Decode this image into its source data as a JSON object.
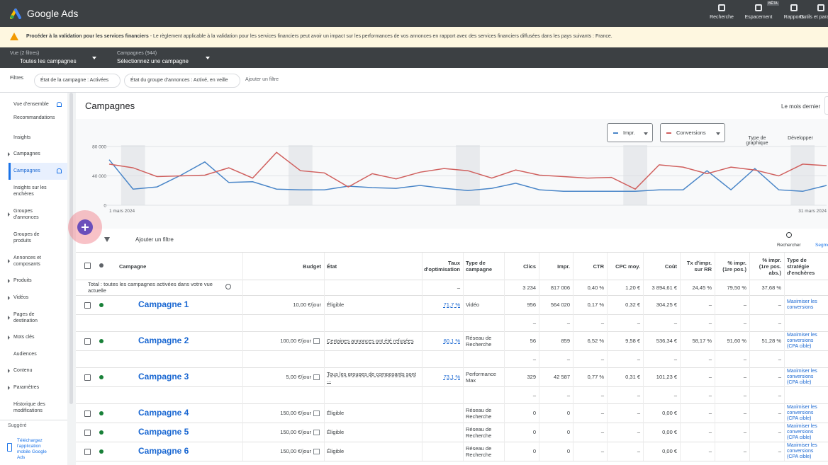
{
  "header": {
    "product": "Google Ads",
    "tools": [
      "Recherche",
      "Espacement",
      "Rapports",
      "Outils et paramètres"
    ],
    "badge": "BÊTA"
  },
  "alert": {
    "title": "Procéder à la validation pour les services financiers",
    "text": " - Le règlement applicable à la validation pour les services financiers peut avoir un impact sur les performances de vos annonces en rapport avec des services financiers diffusées dans les pays suivants : France."
  },
  "nav": {
    "view_label": "Vue (2 filtres)",
    "view_value": "Toutes les campagnes",
    "campaign_label": "Campagnes (944)",
    "campaign_value": "Sélectionnez une campagne"
  },
  "filters": {
    "label": "Filtres",
    "chips": [
      "État de la campagne : Activées",
      "État du groupe d'annonces : Activé, en veille"
    ],
    "add": "Ajouter un filtre"
  },
  "sidebar": {
    "items": [
      "Vue d'ensemble",
      "Recommandations",
      "Insights",
      "Campagnes",
      "Campagnes",
      "Insights sur les enchères",
      "Groupes d'annonces",
      "Groupes de produits",
      "Annonces et composants",
      "Produits",
      "Vidéos",
      "Pages de destination",
      "Mots clés",
      "Audiences",
      "Contenu",
      "Paramètres",
      "Historique des modifications"
    ],
    "suggested": "Suggéré",
    "app": "Téléchargez l'application mobile Google Ads"
  },
  "main": {
    "title": "Campagnes",
    "date_range": "Le mois dernier"
  },
  "chart_data": {
    "type": "line",
    "metrics_buttons": [
      "Type de graphique",
      "Développer"
    ],
    "x": [
      "1 mars 2024",
      null,
      null,
      null,
      null,
      null,
      null,
      null,
      null,
      null,
      null,
      null,
      null,
      null,
      null,
      null,
      null,
      null,
      null,
      null,
      null,
      null,
      null,
      null,
      null,
      null,
      null,
      null,
      null,
      null,
      "31 mars 2024"
    ],
    "ylim": [
      0,
      80000
    ],
    "yticks": [
      0,
      {
        "value": 40000,
        "label": "40 000"
      },
      {
        "value": 80000,
        "label": "80 000"
      }
    ],
    "series": [
      {
        "name": "Impr.",
        "color": "#4a86c8",
        "values": [
          62000,
          22000,
          25000,
          41000,
          59000,
          31000,
          32000,
          22000,
          21000,
          21000,
          26000,
          24000,
          23000,
          27000,
          23000,
          20000,
          23000,
          30000,
          21000,
          19000,
          19000,
          19000,
          19000,
          21000,
          21000,
          47000,
          21000,
          50000,
          21000,
          19000,
          27000
        ]
      },
      {
        "name": "Conversions",
        "color": "#d0605e",
        "values": [
          56000,
          51000,
          39000,
          40000,
          41000,
          51000,
          37000,
          72000,
          47000,
          44000,
          25000,
          43000,
          36000,
          45000,
          50000,
          47000,
          37000,
          48000,
          41000,
          39000,
          37000,
          38000,
          22000,
          55000,
          52000,
          43000,
          52000,
          48000,
          40000,
          56000,
          54000
        ]
      }
    ]
  },
  "table": {
    "toolbar_add": "Ajouter un filtre",
    "search": "Rechercher",
    "segment": "Segmenter",
    "placeholder": "–",
    "headers": [
      "Campagne",
      "Budget",
      "État",
      "Taux d'optimisation",
      "Type de campagne",
      "Clics",
      "Impr.",
      "CTR",
      "CPC moy.",
      "Coût",
      "Tx d'impr. sur RR",
      "% impr. (1re pos.)",
      "% impr. (1re pos. abs.)",
      "Type de stratégie d'enchères"
    ],
    "total": {
      "label": "Total : toutes les campagnes activées dans votre vue actuelle",
      "cells": [
        null,
        null,
        null,
        "–",
        null,
        "3 234",
        "817 006",
        "0,40 %",
        "1,20 €",
        "3 894,61 €",
        "24,45 %",
        "79,50 %",
        "37,68 %",
        null
      ]
    },
    "rows": [
      {
        "cells": [
          "Campagne 1",
          "10,00 €/jour",
          "Éligible",
          "71,7 %",
          "Vidéo",
          "956",
          "564 020",
          "0,17 %",
          "0,32 €",
          "304,25 €",
          "–",
          "–",
          "–",
          "Maximiser les conversions"
        ],
        "sub": true
      },
      {
        "cells": [
          "Campagne 2",
          "100,00 €/jour",
          "Certaines annonces ont été refusées",
          "60,1 %",
          "Réseau de Recherche",
          "56",
          "859",
          "6,52 %",
          "9,58 €",
          "536,34 €",
          "58,17 %",
          "91,60 %",
          "51,28 %",
          "Maximiser les conversions (CPA cible)"
        ],
        "sub": true
      },
      {
        "cells": [
          "Campagne 3",
          "5,00 €/jour",
          "Tous les groupes de composants sont ...",
          "73,1 %",
          "Performance Max",
          "329",
          "42 587",
          "0,77 %",
          "0,31 €",
          "101,23 €",
          "–",
          "–",
          "–",
          "Maximiser les conversions (CPA cible)"
        ],
        "sub": true
      },
      {
        "cells": [
          "Campagne 4",
          "150,00 €/jour",
          "Éligible",
          null,
          "Réseau de Recherche",
          "0",
          "0",
          "–",
          "–",
          "0,00 €",
          "–",
          "–",
          "–",
          "Maximiser les conversions (CPA cible)"
        ],
        "sub": false
      },
      {
        "cells": [
          "Campagne 5",
          "150,00 €/jour",
          "Éligible",
          null,
          "Réseau de Recherche",
          "0",
          "0",
          "–",
          "–",
          "0,00 €",
          "–",
          "–",
          "–",
          "Maximiser les conversions (CPA cible)"
        ],
        "sub": false
      },
      {
        "cells": [
          "Campagne 6",
          "150,00 €/jour",
          "Éligible",
          null,
          "Réseau de Recherche",
          "0",
          "0",
          "–",
          "–",
          "0,00 €",
          "–",
          "–",
          "–",
          "Maximiser les conversions (CPA cible)"
        ],
        "sub": false
      }
    ]
  }
}
